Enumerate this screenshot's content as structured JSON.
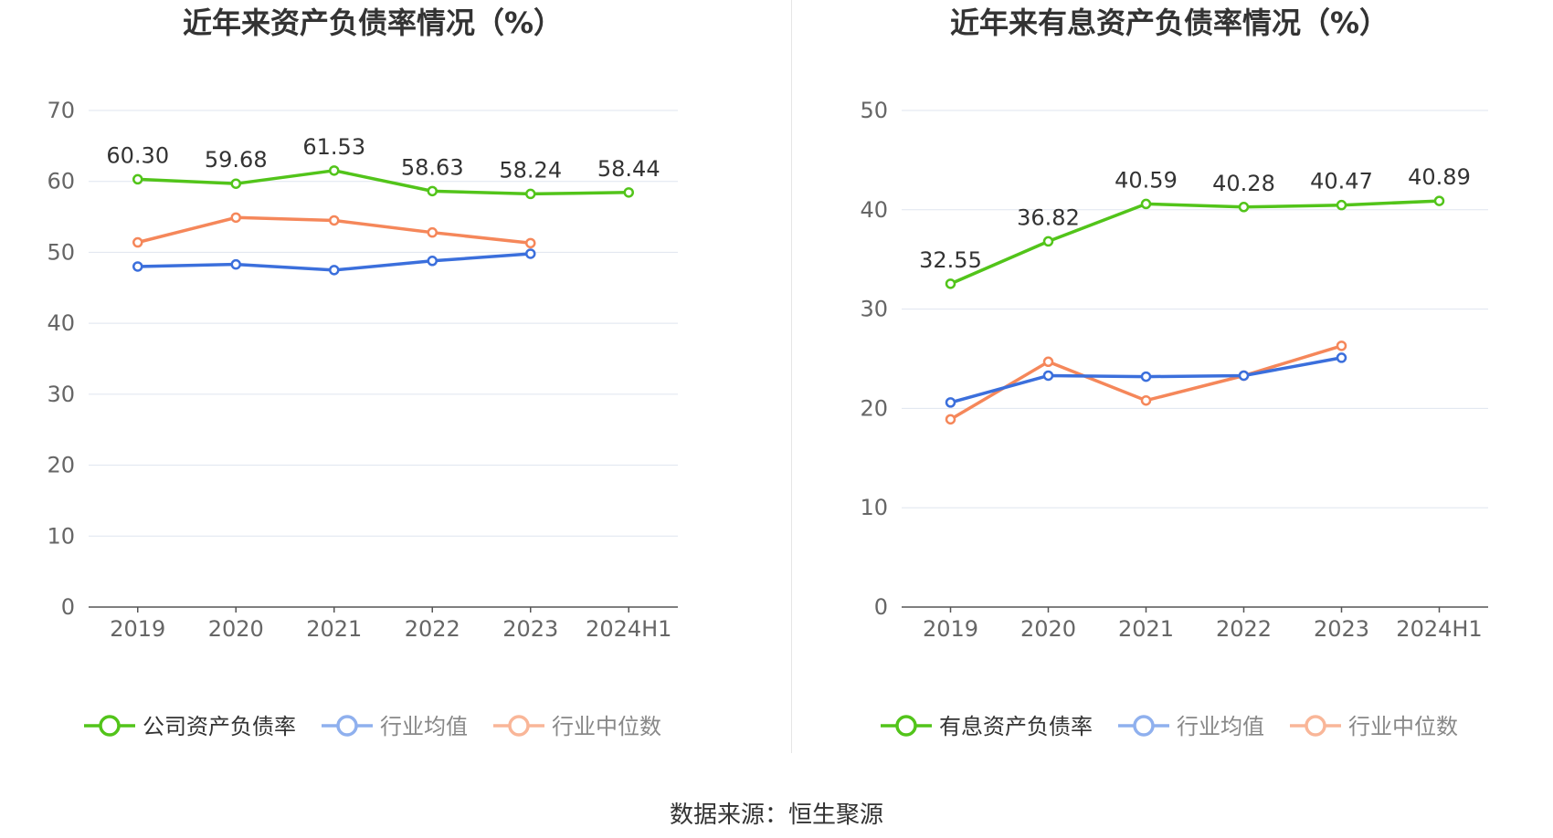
{
  "source": "数据来源：恒生聚源",
  "chart_data": [
    {
      "type": "line",
      "title": "近年来资产负债率情况（%）",
      "categories": [
        "2019",
        "2020",
        "2021",
        "2022",
        "2023",
        "2024H1"
      ],
      "ylim": [
        0,
        70
      ],
      "yticks": [
        0,
        10,
        20,
        30,
        40,
        50,
        60,
        70
      ],
      "grid": true,
      "legend_position": "bottom",
      "series": [
        {
          "name": "公司资产负债率",
          "color": "#52c41a",
          "labels": true,
          "values": [
            60.3,
            59.68,
            61.53,
            58.63,
            58.24,
            58.44
          ],
          "value_labels": [
            "60.30",
            "59.68",
            "61.53",
            "58.63",
            "58.24",
            "58.44"
          ]
        },
        {
          "name": "行业均值",
          "color": "#3b6fdc",
          "labels": false,
          "values": [
            48.0,
            48.3,
            47.5,
            48.8,
            49.8,
            null
          ]
        },
        {
          "name": "行业中位数",
          "color": "#f5875a",
          "labels": false,
          "values": [
            51.4,
            54.9,
            54.5,
            52.8,
            51.3,
            null
          ]
        }
      ]
    },
    {
      "type": "line",
      "title": "近年来有息资产负债率情况（%）",
      "categories": [
        "2019",
        "2020",
        "2021",
        "2022",
        "2023",
        "2024H1"
      ],
      "ylim": [
        0,
        50
      ],
      "yticks": [
        0,
        10,
        20,
        30,
        40,
        50
      ],
      "grid": true,
      "legend_position": "bottom",
      "series": [
        {
          "name": "有息资产负债率",
          "color": "#52c41a",
          "labels": true,
          "values": [
            32.55,
            36.82,
            40.59,
            40.28,
            40.47,
            40.89
          ],
          "value_labels": [
            "32.55",
            "36.82",
            "40.59",
            "40.28",
            "40.47",
            "40.89"
          ]
        },
        {
          "name": "行业均值",
          "color": "#3b6fdc",
          "labels": false,
          "values": [
            20.6,
            23.3,
            23.2,
            23.3,
            25.1,
            null
          ]
        },
        {
          "name": "行业中位数",
          "color": "#f5875a",
          "labels": false,
          "values": [
            18.9,
            24.7,
            20.8,
            23.3,
            26.3,
            null
          ]
        }
      ]
    }
  ]
}
